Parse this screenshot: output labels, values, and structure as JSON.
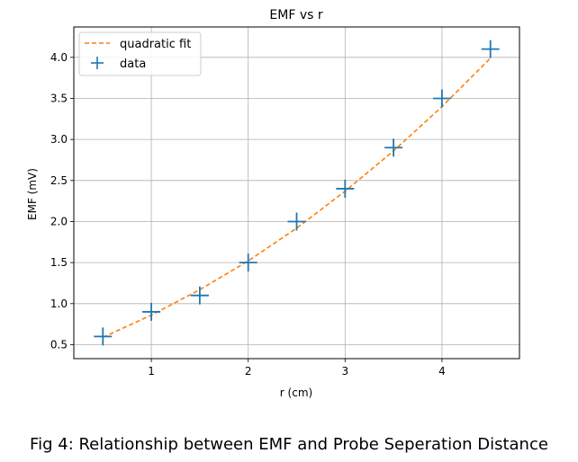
{
  "chart_data": {
    "type": "scatter",
    "title": "EMF vs r",
    "xlabel": "r (cm)",
    "ylabel": "EMF (mV)",
    "xlim": [
      0.2,
      4.8
    ],
    "ylim": [
      0.33,
      4.37
    ],
    "xticks": [
      1,
      2,
      3,
      4
    ],
    "yticks": [
      0.5,
      1.0,
      1.5,
      2.0,
      2.5,
      3.0,
      3.5,
      4.0
    ],
    "grid": true,
    "legend_position": "upper left",
    "series": [
      {
        "name": "data",
        "kind": "markers",
        "marker": "plus",
        "color": "#1f77b4",
        "x": [
          0.5,
          1.0,
          1.5,
          2.0,
          2.5,
          3.0,
          3.5,
          4.0,
          4.5
        ],
        "y": [
          0.6,
          0.9,
          1.1,
          1.5,
          2.0,
          2.4,
          2.9,
          3.5,
          4.1
        ]
      },
      {
        "name": "quadratic fit",
        "kind": "dashed-line",
        "color": "#ff7f0e",
        "x": [
          0.5,
          1.0,
          1.5,
          2.0,
          2.5,
          3.0,
          3.5,
          4.0,
          4.5
        ],
        "y": [
          0.59,
          0.86,
          1.17,
          1.52,
          1.92,
          2.37,
          2.86,
          3.4,
          3.99
        ]
      }
    ]
  },
  "caption": "Fig 4: Relationship between EMF and Probe Seperation Distance"
}
